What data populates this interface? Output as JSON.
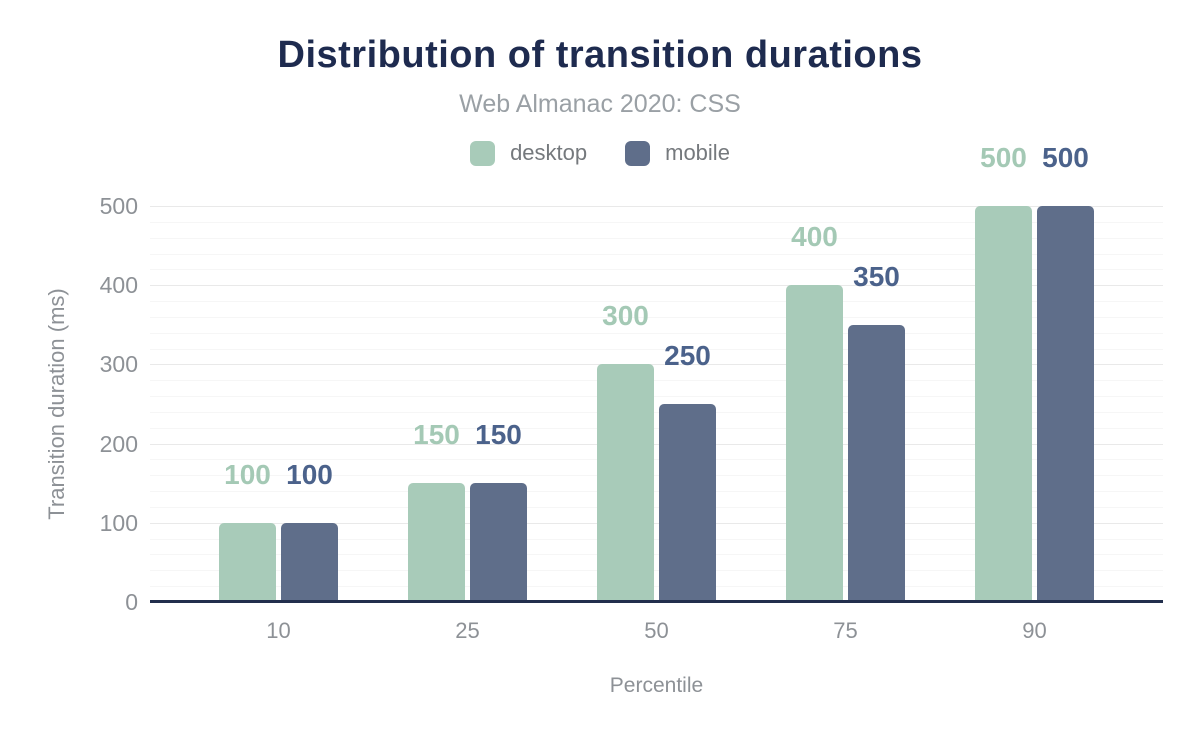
{
  "header": {
    "title": "Distribution of transition durations",
    "subtitle": "Web Almanac 2020: CSS"
  },
  "chart_data": {
    "type": "bar",
    "title": "Distribution of transition durations",
    "subtitle": "Web Almanac 2020: CSS",
    "xlabel": "Percentile",
    "ylabel": "Transition duration (ms)",
    "categories": [
      "10",
      "25",
      "50",
      "75",
      "90"
    ],
    "series": [
      {
        "name": "desktop",
        "color": "#a8cbb9",
        "label_color": "#a4c9b5",
        "values": [
          100,
          150,
          300,
          400,
          500
        ]
      },
      {
        "name": "mobile",
        "color": "#5f6e8a",
        "label_color": "#4b628b",
        "values": [
          100,
          150,
          250,
          350,
          500
        ]
      }
    ],
    "ylim": [
      0,
      500
    ],
    "yticks": [
      0,
      100,
      200,
      300,
      400,
      500
    ],
    "minor_grid_step": 20,
    "major_grid_step": 100,
    "grid": "horizontal",
    "legend_position": "top",
    "bar_value_labels": true
  },
  "colors": {
    "title": "#1e2b4f",
    "subtitle": "#9aa0a5",
    "legend_text": "#75797d",
    "axis_text": "#8d9196",
    "baseline": "#222f4d",
    "gridline_minor": "#f6f6f6",
    "gridline_major": "#e9e9e9"
  }
}
